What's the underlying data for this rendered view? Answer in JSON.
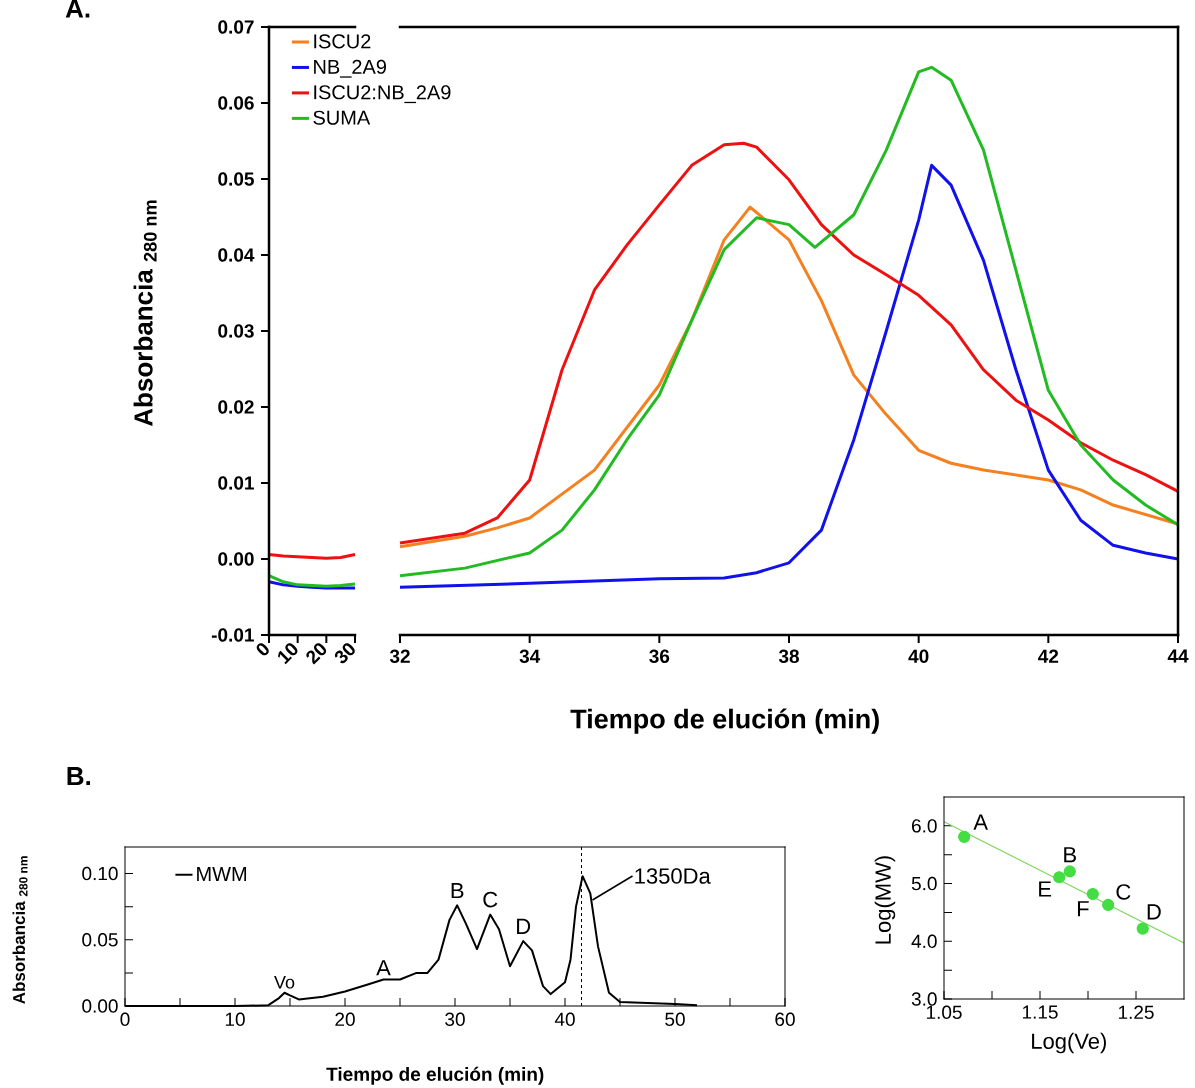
{
  "chart_data": [
    {
      "type": "line",
      "title": "A.",
      "ylabel": "Absorbancia $_{280 nm}$",
      "xlim": [
        0,
        30
      ],
      "xticks": [
        0,
        10,
        20,
        30
      ],
      "ylim": [
        -0.01,
        0.07
      ],
      "yticks": [
        -0.01,
        {
          "value": 0,
          "label": "0.00"
        },
        0.01,
        0.02,
        0.03,
        0.04,
        0.05,
        0.06,
        0.07
      ],
      "series": [
        {
          "color": "#ee1111",
          "x": [
            0,
            5,
            10,
            15,
            20,
            25,
            30
          ],
          "values": [
            0.0006,
            0.0004,
            0.0003,
            0.0002,
            0.0001,
            0.0002,
            0.0006
          ]
        },
        {
          "color": "#1111ee",
          "x": [
            0,
            5,
            10,
            15,
            20,
            25,
            30
          ],
          "values": [
            -0.003,
            -0.0034,
            -0.0036,
            -0.0037,
            -0.0038,
            -0.0038,
            -0.0038
          ]
        },
        {
          "color": "#22bb22",
          "x": [
            0,
            5,
            10,
            15,
            20,
            25,
            30
          ],
          "values": [
            -0.0022,
            -0.003,
            -0.0034,
            -0.0035,
            -0.0036,
            -0.0035,
            -0.0033
          ]
        }
      ]
    },
    {
      "type": "line",
      "xlabel": "Tiempo de elución (min)",
      "xlim": [
        32,
        44
      ],
      "xticks": [
        32,
        34,
        36,
        38,
        40,
        42,
        44
      ],
      "ylim": [
        -0.01,
        0.07
      ],
      "tick_labels": "x",
      "legend": "top left",
      "series": [
        {
          "name": "ISCU2",
          "color": "#f5801f",
          "x": [
            32,
            33,
            33.5,
            34,
            35,
            36,
            36.5,
            37,
            37.4,
            38,
            38.5,
            39,
            39.5,
            40,
            40.5,
            41,
            42,
            42.5,
            43,
            44
          ],
          "values": [
            0.0016,
            0.003,
            0.0041,
            0.0054,
            0.0117,
            0.0229,
            0.0314,
            0.042,
            0.0463,
            0.042,
            0.034,
            0.0242,
            0.019,
            0.0143,
            0.0126,
            0.0117,
            0.0104,
            0.0091,
            0.0071,
            0.0046
          ]
        },
        {
          "name": "NB_2A9",
          "color": "#1111ee",
          "x": [
            32,
            34,
            36,
            37,
            37.5,
            38,
            38.5,
            39,
            39.5,
            40,
            40.2,
            40.5,
            41,
            41.5,
            42,
            42.5,
            43,
            43.5,
            44
          ],
          "values": [
            -0.0037,
            -0.0032,
            -0.0026,
            -0.0025,
            -0.0018,
            -0.0005,
            0.0038,
            0.0157,
            0.03,
            0.0446,
            0.0518,
            0.0492,
            0.0393,
            0.0249,
            0.0117,
            0.0051,
            0.0018,
            0.0008,
            0.0
          ]
        },
        {
          "name": "ISCU2:NB_2A9",
          "color": "#ee1111",
          "x": [
            32,
            33,
            33.5,
            34,
            34.5,
            35,
            35.5,
            36,
            36.5,
            37,
            37.3,
            37.5,
            38,
            38.5,
            39,
            39.5,
            40,
            40.5,
            41,
            41.5,
            42,
            42.5,
            43,
            43.5,
            44
          ],
          "values": [
            0.0021,
            0.0034,
            0.0054,
            0.0104,
            0.0249,
            0.0354,
            0.0413,
            0.0466,
            0.0518,
            0.0545,
            0.0547,
            0.0542,
            0.0499,
            0.044,
            0.04,
            0.0374,
            0.0347,
            0.0308,
            0.0249,
            0.0209,
            0.0183,
            0.0153,
            0.013,
            0.0111,
            0.0089
          ]
        },
        {
          "name": "SUMA",
          "color": "#22bb22",
          "x": [
            32,
            33,
            34,
            34.5,
            35,
            35.5,
            36,
            36.5,
            37,
            37.5,
            38,
            38.4,
            39,
            39.5,
            40,
            40.2,
            40.5,
            41,
            41.5,
            42,
            42.5,
            43,
            43.5,
            44
          ],
          "values": [
            -0.0022,
            -0.0012,
            0.0008,
            0.0038,
            0.0091,
            0.0157,
            0.0216,
            0.0314,
            0.0407,
            0.0449,
            0.044,
            0.041,
            0.0453,
            0.0538,
            0.0641,
            0.0647,
            0.063,
            0.0538,
            0.038,
            0.0222,
            0.015,
            0.0104,
            0.0071,
            0.0045
          ]
        }
      ]
    },
    {
      "type": "line",
      "title": "B.",
      "xlabel": "Tiempo de elución (min)",
      "ylabel": "Absorbancia $_{280 nm}$",
      "xlim": [
        0,
        60
      ],
      "xticks": [
        0,
        {
          "value": 5,
          "label": null
        },
        10,
        {
          "value": 15,
          "label": null
        },
        20,
        {
          "value": 25,
          "label": null
        },
        30,
        {
          "value": 35,
          "label": null
        },
        40,
        {
          "value": 45,
          "label": null
        },
        50,
        {
          "value": 55,
          "label": null
        },
        60
      ],
      "ylim": [
        0,
        0.12
      ],
      "yticks": [
        {
          "value": 0,
          "label": "0.00"
        },
        {
          "value": 0.025,
          "label": null
        },
        {
          "value": 0.05,
          "label": "0.05"
        },
        {
          "value": 0.075,
          "label": null
        },
        {
          "value": 0.1,
          "label": "0.10"
        }
      ],
      "legend": "top left",
      "series": [
        {
          "name": "MWM",
          "color": "#000000",
          "x": [
            0,
            10,
            13,
            14,
            14.5,
            15,
            15.8,
            18,
            20,
            22,
            23.5,
            25,
            26.5,
            27.5,
            28.5,
            29.5,
            30.2,
            31,
            32,
            33.2,
            34,
            35,
            36.2,
            37,
            38,
            38.7,
            40,
            40.5,
            41,
            41.6,
            42.3,
            43,
            44,
            45,
            50,
            52
          ],
          "values": [
            0,
            0,
            0.0005,
            0.006,
            0.01,
            0.008,
            0.005,
            0.007,
            0.011,
            0.016,
            0.02,
            0.02,
            0.025,
            0.025,
            0.035,
            0.065,
            0.076,
            0.062,
            0.043,
            0.069,
            0.058,
            0.03,
            0.049,
            0.042,
            0.015,
            0.009,
            0.018,
            0.035,
            0.075,
            0.098,
            0.085,
            0.045,
            0.01,
            0.003,
            0.0015,
            0.0005
          ]
        }
      ],
      "ref_lines": [
        {
          "axis": "x",
          "value": 41.5,
          "line_style": "dashed"
        }
      ],
      "annotations": [
        {
          "text": "Vo",
          "x": 14.5,
          "y": 0.01
        },
        {
          "text": "A",
          "x": 23.5,
          "y": 0.02
        },
        {
          "text": "B",
          "x": 30.2,
          "y": 0.076
        },
        {
          "text": "C",
          "x": 33.2,
          "y": 0.069
        },
        {
          "text": "D",
          "x": 36.2,
          "y": 0.049
        },
        {
          "text": "1350Da",
          "x": 42.5,
          "y": 0.08
        }
      ]
    },
    {
      "type": "scatter",
      "xlabel": "Log(Ve)",
      "ylabel": "Log(MW)",
      "xlim": [
        1.05,
        1.3
      ],
      "xticks": [
        1.05,
        {
          "value": 1.1,
          "label": null
        },
        1.15,
        {
          "value": 1.2,
          "label": null
        },
        1.25
      ],
      "ylim": [
        3,
        6.5
      ],
      "yticks": [
        {
          "value": 3,
          "label": "3.0"
        },
        {
          "value": 3.5,
          "label": null
        },
        {
          "value": 4,
          "label": "4.0"
        },
        {
          "value": 4.5,
          "label": null
        },
        {
          "value": 5,
          "label": "5.0"
        },
        {
          "value": 5.5,
          "label": null
        },
        {
          "value": 6,
          "label": "6.0"
        }
      ],
      "series": [
        {
          "type": "line",
          "color": "#7dd35a",
          "x": [
            1.05,
            1.3
          ],
          "values": [
            6.07,
            3.97
          ]
        },
        {
          "color": "#44dd44",
          "x": [
            1.071,
            1.17,
            1.181,
            1.205,
            1.221,
            1.257
          ],
          "values": [
            5.81,
            5.11,
            5.21,
            4.82,
            4.63,
            4.22
          ]
        }
      ],
      "annotations": [
        {
          "text": "A",
          "x": 1.071,
          "y": 5.81
        },
        {
          "text": "E",
          "x": 1.17,
          "y": 5.11
        },
        {
          "text": "B",
          "x": 1.181,
          "y": 5.21
        },
        {
          "text": "F",
          "x": 1.205,
          "y": 4.82
        },
        {
          "text": "C",
          "x": 1.221,
          "y": 4.63
        },
        {
          "text": "D",
          "x": 1.257,
          "y": 4.22
        }
      ]
    }
  ]
}
